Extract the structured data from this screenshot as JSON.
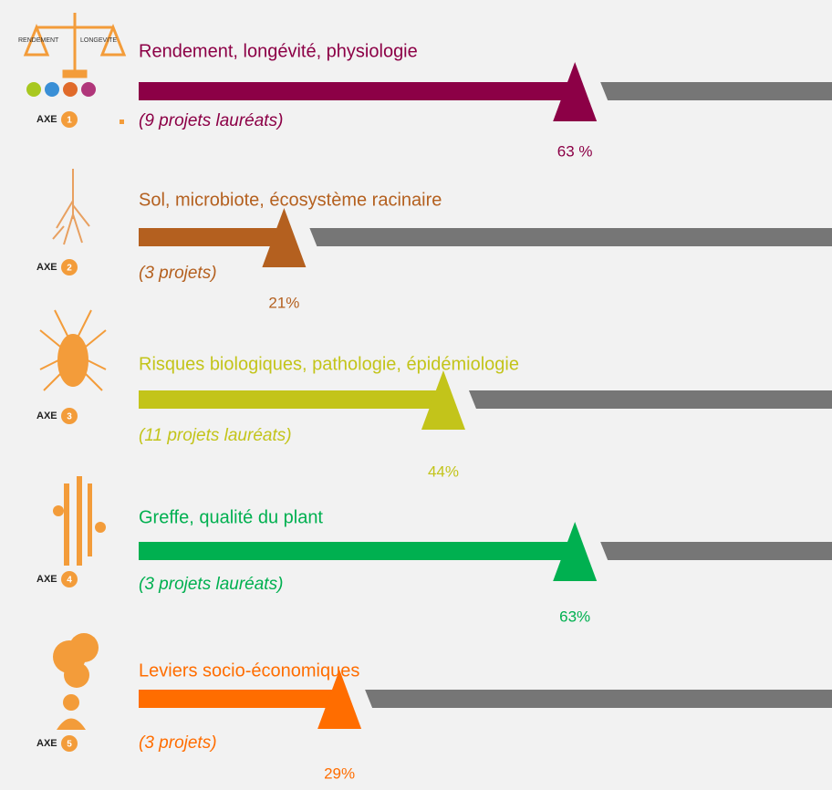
{
  "chart_data": {
    "type": "progress",
    "icon_labels": [
      "RENDEMENT",
      "LONGEVITE"
    ],
    "axis_word": "AXE",
    "numbers": [
      "1",
      "2",
      "3",
      "4",
      "5"
    ],
    "categories": [
      "Rendement, longévité, physiologie",
      "Sol, microbiote, écosystème racinaire",
      "Risques biologiques, pathologie, épidémiologie",
      "Greffe, qualité du plant",
      "Leviers socio-économiques"
    ],
    "subtitles": [
      "(9 projets lauréats)",
      "(3 projets)",
      "(11 projets lauréats)",
      "(3 projets lauréats)",
      "(3 projets)"
    ],
    "values": [
      63,
      21,
      44,
      63,
      29
    ],
    "value_labels": [
      "63 %",
      "21%",
      "44%",
      "63%",
      "29%"
    ],
    "colors": [
      "#8c0046",
      "#b4601f",
      "#c3c41a",
      "#00b050",
      "#ff6d00"
    ],
    "track_color": "#767676",
    "xlim": [
      0,
      100
    ]
  }
}
